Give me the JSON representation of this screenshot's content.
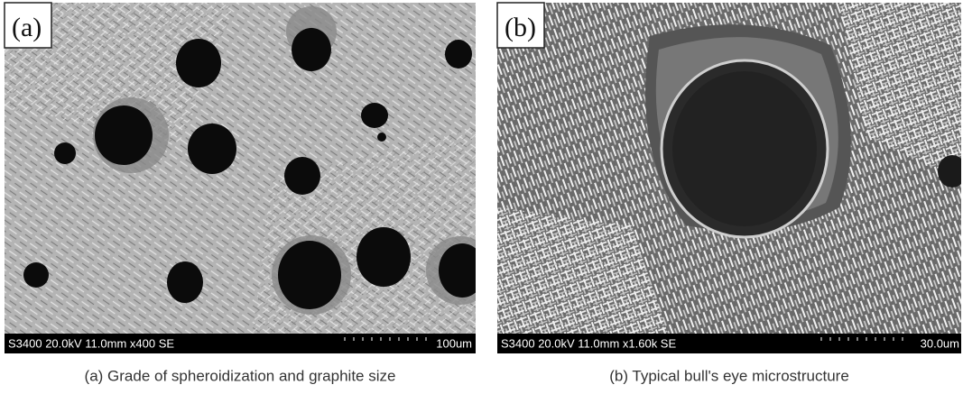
{
  "panels": [
    {
      "label": "(a)",
      "info": "S3400 20.0kV 11.0mm x400 SE",
      "scale": "100um",
      "caption": "(a) Grade of spheroidization and graphite size"
    },
    {
      "label": "(b)",
      "info": "S3400 20.0kV 11.0mm x1.60k SE",
      "scale": "30.0um",
      "caption": "(b) Typical bull's eye microstructure"
    }
  ]
}
